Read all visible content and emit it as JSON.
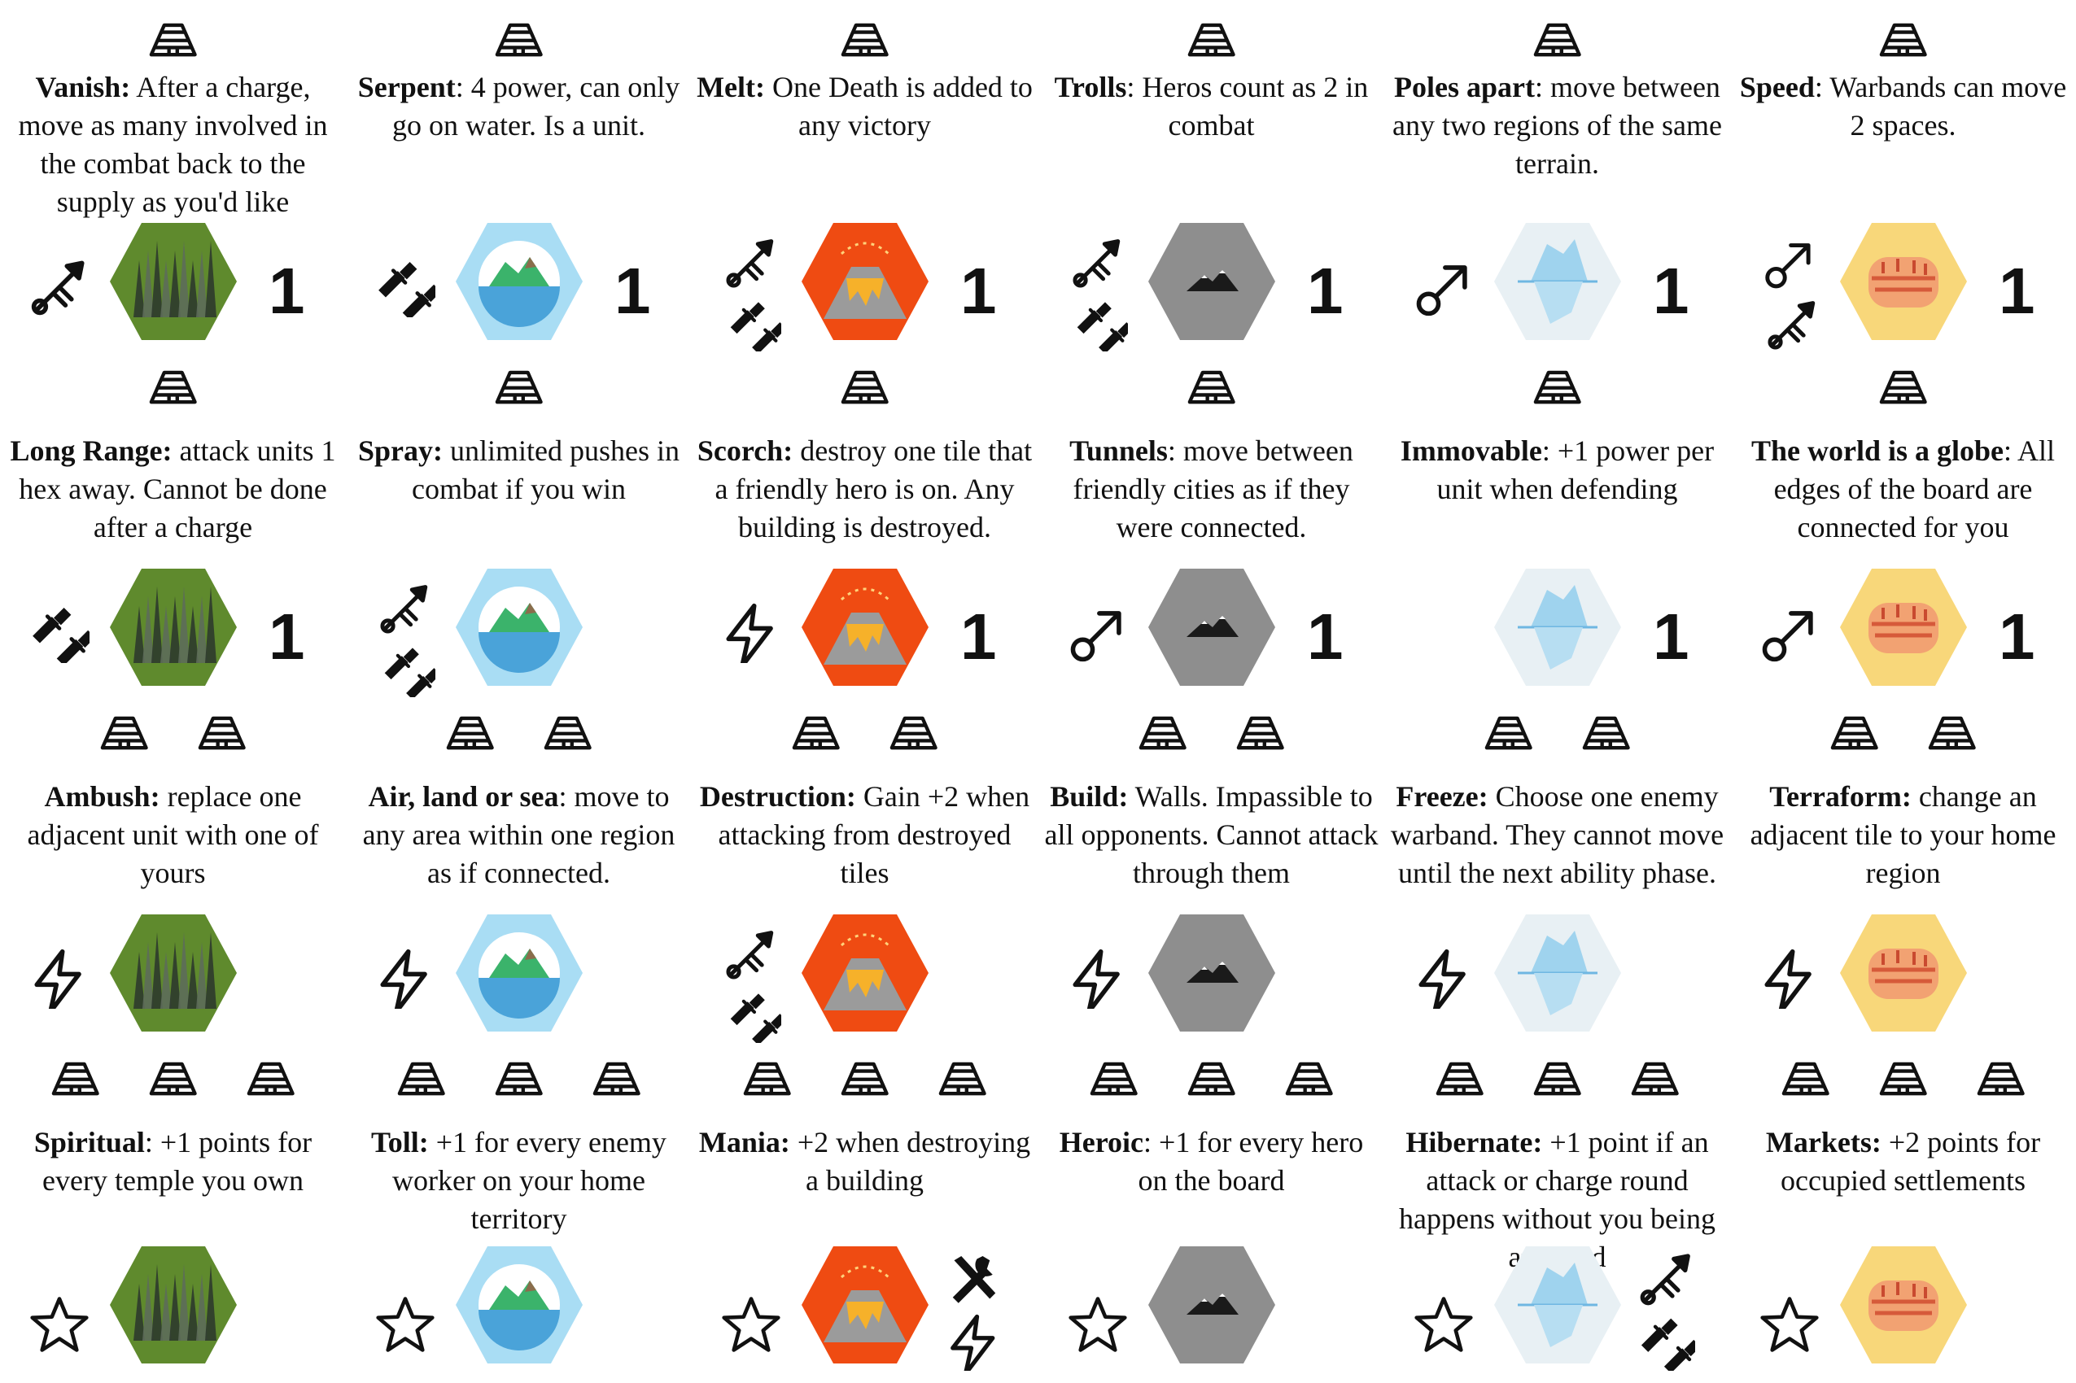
{
  "colors": {
    "forest": "#5f8a2d",
    "lake": "#a9ddf4",
    "volcano": "#ef4b12",
    "mountain": "#8e8e8e",
    "ice": "#e8f0f4",
    "desert": "#f8d77a"
  },
  "cards": [
    {
      "temples": 1,
      "name": "Vanish:",
      "text": " After a charge, move as many involved in the combat back to the supply as you'd like",
      "terrain": "forest",
      "actions": [
        "spear-icon"
      ],
      "cost": "1"
    },
    {
      "temples": 1,
      "name": "Serpent",
      "text": ": 4 power, can only go on water. Is a unit.",
      "terrain": "lake",
      "actions": [
        "dagger-icon"
      ],
      "cost": "1"
    },
    {
      "temples": 1,
      "name": "Melt:",
      "text": " One Death is added to any victory",
      "terrain": "volcano",
      "actions": [
        "spear-icon",
        "dagger-icon"
      ],
      "cost": "1"
    },
    {
      "temples": 1,
      "name": "Trolls",
      "text": ": Heros count as 2 in combat",
      "terrain": "mountain",
      "actions": [
        "spear-icon",
        "dagger-icon"
      ],
      "cost": "1"
    },
    {
      "temples": 1,
      "name": "Poles apart",
      "text": ": move between any two regions of the same terrain.",
      "terrain": "ice",
      "actions": [
        "move-icon"
      ],
      "cost": "1"
    },
    {
      "temples": 1,
      "name": "Speed",
      "text": ": Warbands can move 2 spaces.",
      "terrain": "desert",
      "actions": [
        "move-icon",
        "spear-icon"
      ],
      "cost": "1"
    },
    {
      "temples": 1,
      "name": "Long Range:",
      "text": " attack units 1 hex away. Cannot be done after a charge",
      "terrain": "forest",
      "actions": [
        "dagger-icon"
      ],
      "cost": "1"
    },
    {
      "temples": 1,
      "name": "Spray:",
      "text": " unlimited pushes in combat if you win",
      "terrain": "lake",
      "actions": [
        "spear-icon",
        "dagger-icon"
      ],
      "cost": ""
    },
    {
      "temples": 1,
      "name": "Scorch:",
      "text": " destroy one tile that a friendly hero is on. Any building is destroyed.",
      "terrain": "volcano",
      "actions": [
        "lightning-icon"
      ],
      "cost": "1"
    },
    {
      "temples": 1,
      "name": "Tunnels",
      "text": ": move between friendly cities as if they were connected.",
      "terrain": "mountain",
      "actions": [
        "move-icon"
      ],
      "cost": "1"
    },
    {
      "temples": 1,
      "name": "Immovable",
      "text": ": +1 power per unit when defending",
      "terrain": "ice",
      "actions": [],
      "cost": "1"
    },
    {
      "temples": 1,
      "name": "The world is a globe",
      "text": ": All edges of the board are connected for you",
      "terrain": "desert",
      "actions": [
        "move-icon"
      ],
      "cost": "1"
    },
    {
      "temples": 2,
      "name": "Ambush:",
      "text": " replace one adjacent unit with one of yours",
      "terrain": "forest",
      "actions": [
        "lightning-icon"
      ],
      "cost": ""
    },
    {
      "temples": 2,
      "name": "Air, land or sea",
      "text": ": move to any area within one region as if connected.",
      "terrain": "lake",
      "actions": [
        "lightning-icon"
      ],
      "cost": ""
    },
    {
      "temples": 2,
      "name": "Destruction:",
      "text": " Gain +2 when attacking from destroyed tiles",
      "terrain": "volcano",
      "actions": [
        "spear-icon",
        "dagger-icon"
      ],
      "cost": ""
    },
    {
      "temples": 2,
      "name": "Build:",
      "text": " Walls. Impassible to all opponents. Cannot attack through them",
      "terrain": "mountain",
      "actions": [
        "lightning-icon"
      ],
      "cost": ""
    },
    {
      "temples": 2,
      "name": "Freeze:",
      "text": " Choose one enemy warband. They cannot move until the next ability phase.",
      "terrain": "ice",
      "actions": [
        "lightning-icon"
      ],
      "cost": ""
    },
    {
      "temples": 2,
      "name": "Terraform:",
      "text": " change an adjacent tile to your home region",
      "terrain": "desert",
      "actions": [
        "lightning-icon"
      ],
      "cost": ""
    },
    {
      "temples": 3,
      "name": "Spiritual",
      "text": ": +1 points for every temple you own",
      "terrain": "forest",
      "actions": [
        "star-icon"
      ],
      "right": [],
      "cost": ""
    },
    {
      "temples": 3,
      "name": "Toll:",
      "text": " +1 for every enemy worker on your home territory",
      "terrain": "lake",
      "actions": [
        "star-icon"
      ],
      "right": [],
      "cost": ""
    },
    {
      "temples": 3,
      "name": "Mania:",
      "text": " +2 when destroying a building",
      "terrain": "volcano",
      "actions": [
        "star-icon"
      ],
      "right": [
        "tools-icon",
        "lightning-icon"
      ],
      "cost": ""
    },
    {
      "temples": 3,
      "name": "Heroic",
      "text": ": +1 for every hero on the board",
      "terrain": "mountain",
      "actions": [
        "star-icon"
      ],
      "right": [],
      "cost": ""
    },
    {
      "temples": 3,
      "name": "Hibernate:",
      "text": " +1 point if an attack or charge round happens without you being attacked",
      "terrain": "ice",
      "actions": [
        "star-icon"
      ],
      "right": [
        "spear-icon",
        "dagger-icon"
      ],
      "cost": ""
    },
    {
      "temples": 3,
      "name": "Markets:",
      "text": " +2 points for occupied settlements",
      "terrain": "desert",
      "actions": [
        "star-icon"
      ],
      "right": [],
      "cost": ""
    }
  ]
}
